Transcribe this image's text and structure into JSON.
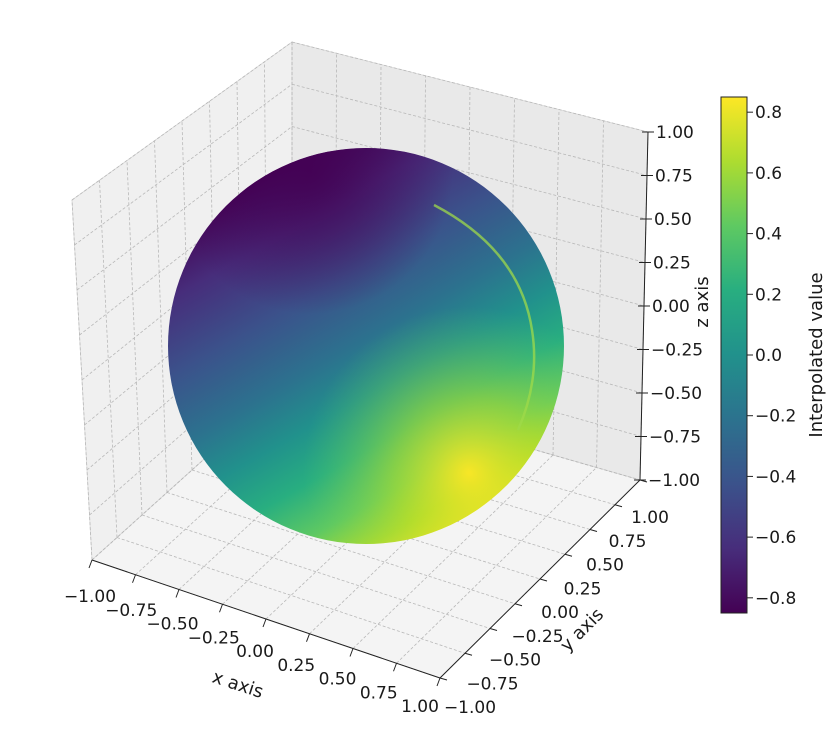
{
  "chart_data": {
    "type": "surface3d",
    "shape": "sphere",
    "center": [
      0,
      0,
      0
    ],
    "radius": 1.0,
    "xlabel": "x axis",
    "ylabel": "y axis",
    "zlabel": "z axis",
    "xlim": [
      -1.0,
      1.0
    ],
    "ylim": [
      -1.0,
      1.0
    ],
    "zlim": [
      -1.0,
      1.0
    ],
    "x_ticks": [
      "−1.00",
      "−0.75",
      "−0.50",
      "−0.25",
      "0.00",
      "0.25",
      "0.50",
      "0.75",
      "1.00"
    ],
    "y_ticks": [
      "−1.00",
      "−0.75",
      "−0.50",
      "−0.25",
      "0.00",
      "0.25",
      "0.50",
      "0.75",
      "1.00"
    ],
    "z_ticks": [
      "−1.00",
      "−0.75",
      "−0.50",
      "−0.25",
      "0.00",
      "0.25",
      "0.50",
      "0.75",
      "1.00"
    ],
    "grid": true,
    "colormap": "viridis",
    "colorbar": {
      "label": "Interpolated value",
      "range": [
        -0.85,
        0.85
      ],
      "ticks": [
        "−0.8",
        "−0.6",
        "−0.4",
        "−0.2",
        "0.0",
        "0.2",
        "0.4",
        "0.6",
        "0.8"
      ],
      "tick_values": [
        -0.8,
        -0.6,
        -0.4,
        -0.2,
        0.0,
        0.2,
        0.4,
        0.6,
        0.8
      ]
    },
    "surface_values": {
      "minimum": -0.85,
      "maximum": 0.85,
      "min_region": "upper back-left",
      "max_region": "lower front-right"
    }
  }
}
